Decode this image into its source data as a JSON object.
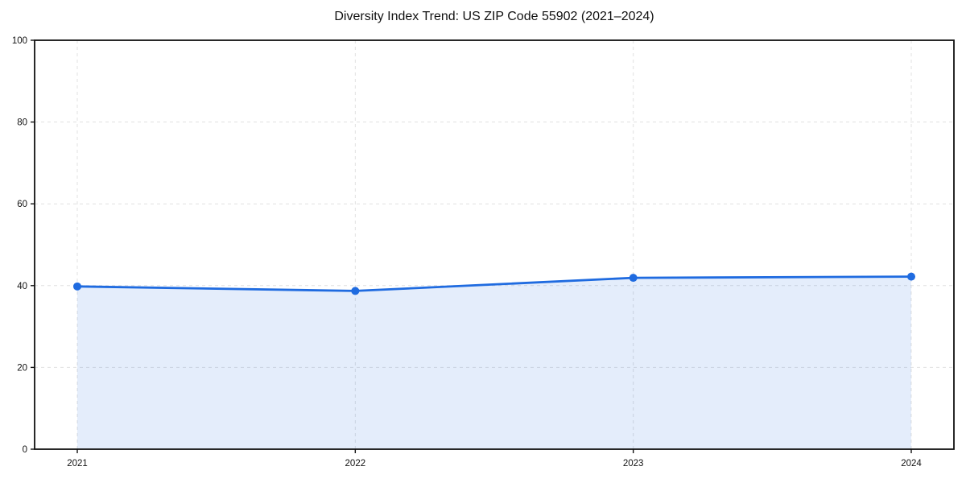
{
  "chart_data": {
    "type": "area",
    "title": "Diversity Index Trend: US ZIP Code 55902 (2021–2024)",
    "x": [
      "2021",
      "2022",
      "2023",
      "2024"
    ],
    "series": [
      {
        "name": "Diversity Index",
        "values": [
          39.8,
          38.7,
          41.9,
          42.2
        ]
      }
    ],
    "xlabel": "",
    "ylabel": "",
    "ylim": [
      0,
      100
    ],
    "yticks": [
      0,
      20,
      40,
      60,
      80,
      100
    ],
    "grid": "dashed-both-axes",
    "legend": "none",
    "marker": "circle",
    "colors": {
      "line": "#1f6be0",
      "marker": "#1f6be0",
      "fill": "#1f6be0",
      "grid": "#e0e0e0",
      "spine": "#111111",
      "text": "#111111",
      "background": "#ffffff"
    },
    "fill_opacity": 0.12
  }
}
